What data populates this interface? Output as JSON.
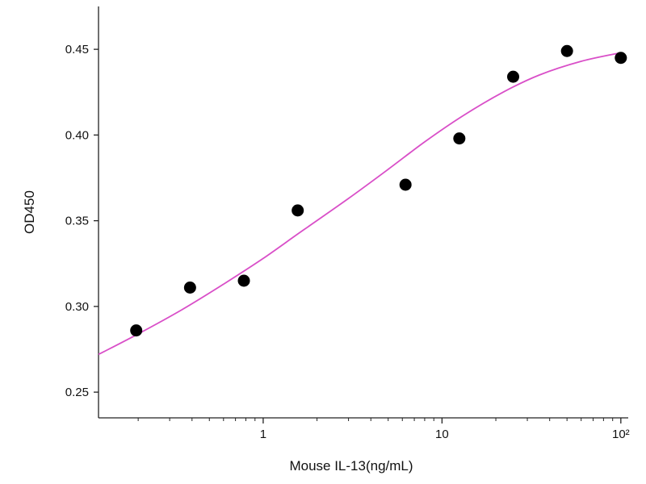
{
  "chart_data": {
    "type": "scatter",
    "xlabel": "Mouse IL-13(ng/mL)",
    "ylabel": "OD450",
    "x_scale": "log",
    "xlim": [
      0.12,
      110
    ],
    "ylim": [
      0.235,
      0.475
    ],
    "x_ticks": [
      1,
      10,
      100
    ],
    "x_tick_labels": [
      "1",
      "10",
      "10²"
    ],
    "y_ticks": [
      0.25,
      0.3,
      0.35,
      0.4,
      0.45
    ],
    "y_tick_labels": [
      "0.25",
      "0.30",
      "0.35",
      "0.40",
      "0.45"
    ],
    "grid": false,
    "legend": false,
    "points": {
      "x": [
        0.195,
        0.39,
        0.78,
        1.56,
        6.25,
        12.5,
        25,
        50,
        100
      ],
      "y": [
        0.286,
        0.311,
        0.315,
        0.356,
        0.371,
        0.398,
        0.434,
        0.449,
        0.445
      ],
      "color": "#000000"
    },
    "fit_curve": {
      "x": [
        0.12,
        0.2,
        0.35,
        0.6,
        1,
        1.7,
        3,
        5,
        8,
        13,
        22,
        35,
        60,
        100
      ],
      "y": [
        0.272,
        0.284,
        0.298,
        0.313,
        0.328,
        0.345,
        0.363,
        0.38,
        0.396,
        0.411,
        0.425,
        0.435,
        0.443,
        0.448
      ],
      "color": "#d94fc8"
    }
  }
}
